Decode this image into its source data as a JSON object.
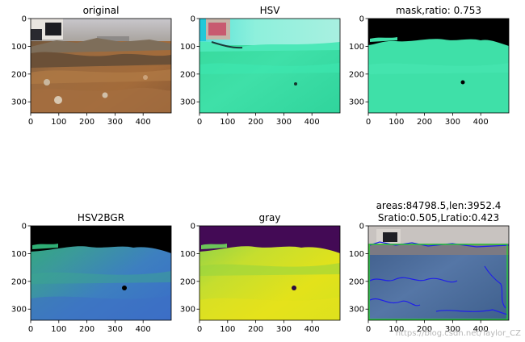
{
  "figure": {
    "watermark": "https://blog.csdn.net/Taylor_CZ"
  },
  "chart_data": [
    {
      "type": "image",
      "title": "original",
      "xticks": [
        0,
        100,
        200,
        300,
        400
      ],
      "yticks": [
        0,
        100,
        200,
        300
      ],
      "xlim": [
        0,
        500
      ],
      "ylim": [
        340,
        0
      ]
    },
    {
      "type": "image",
      "title": "HSV",
      "xticks": [
        0,
        100,
        200,
        300,
        400
      ],
      "yticks": [
        0,
        100,
        200,
        300
      ],
      "xlim": [
        0,
        500
      ],
      "ylim": [
        340,
        0
      ]
    },
    {
      "type": "image",
      "title": "mask,ratio: 0.753",
      "xticks": [
        0,
        100,
        200,
        300,
        400
      ],
      "yticks": [
        0,
        100,
        200,
        300
      ],
      "xlim": [
        0,
        500
      ],
      "ylim": [
        340,
        0
      ]
    },
    {
      "type": "image",
      "title": "HSV2BGR",
      "xticks": [
        0,
        100,
        200,
        300,
        400
      ],
      "yticks": [
        0,
        100,
        200,
        300
      ],
      "xlim": [
        0,
        500
      ],
      "ylim": [
        340,
        0
      ]
    },
    {
      "type": "image",
      "title": "gray",
      "xticks": [
        0,
        100,
        200,
        300,
        400
      ],
      "yticks": [
        0,
        100,
        200,
        300
      ],
      "xlim": [
        0,
        500
      ],
      "ylim": [
        340,
        0
      ]
    },
    {
      "type": "image",
      "title": "areas:84798.5,len:3952.4",
      "subtitle": "Sratio:0.505,Lratio:0.423",
      "xticks": [
        0,
        100,
        200,
        300,
        400
      ],
      "yticks": [
        0,
        100,
        200,
        300
      ],
      "xlim": [
        0,
        500
      ],
      "ylim": [
        340,
        0
      ]
    }
  ]
}
